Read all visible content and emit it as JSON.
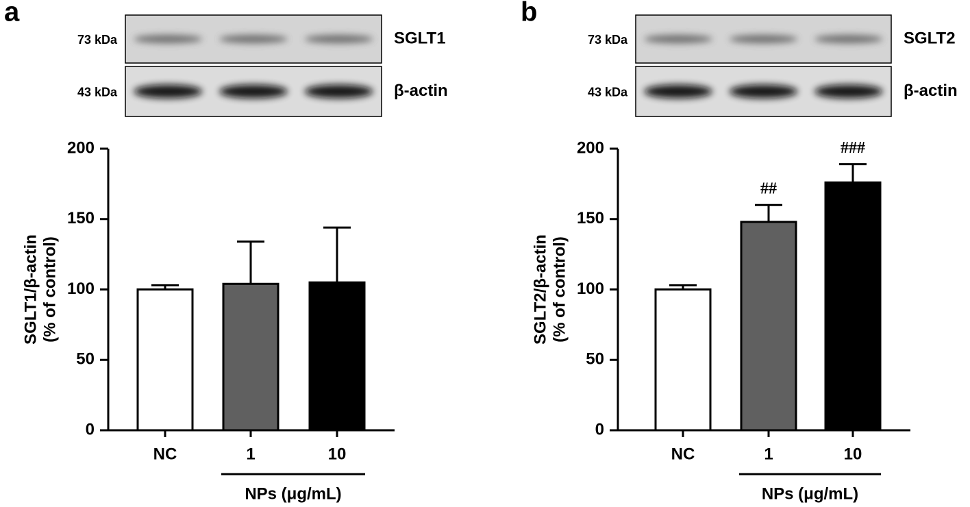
{
  "chart_data": [
    {
      "type": "bar",
      "panel_label": "a",
      "blot": [
        {
          "size": "73 kDa",
          "protein": "SGLT1"
        },
        {
          "size": "43 kDa",
          "protein": "β-actin"
        }
      ],
      "y_label": [
        "SGLT1/β-actin",
        "(% of control)"
      ],
      "categories": [
        "NC",
        "1",
        "10"
      ],
      "group_label": "NPs (μg/mL)",
      "values": [
        100,
        104,
        105
      ],
      "errors": [
        3,
        30,
        39
      ],
      "colors": [
        "#ffffff",
        "#606060",
        "#000000"
      ],
      "ylim": [
        0,
        200
      ],
      "yticks": [
        0,
        50,
        100,
        150,
        200
      ]
    },
    {
      "type": "bar",
      "panel_label": "b",
      "blot": [
        {
          "size": "73 kDa",
          "protein": "SGLT2"
        },
        {
          "size": "43 kDa",
          "protein": "β-actin"
        }
      ],
      "y_label": [
        "SGLT2/β-actin",
        "(% of control)"
      ],
      "categories": [
        "NC",
        "1",
        "10"
      ],
      "group_label": "NPs (μg/mL)",
      "values": [
        100,
        148,
        176
      ],
      "errors": [
        3,
        12,
        13
      ],
      "colors": [
        "#ffffff",
        "#606060",
        "#000000"
      ],
      "significance": [
        null,
        "##",
        "###"
      ],
      "ylim": [
        0,
        200
      ],
      "yticks": [
        0,
        50,
        100,
        150,
        200
      ]
    }
  ]
}
